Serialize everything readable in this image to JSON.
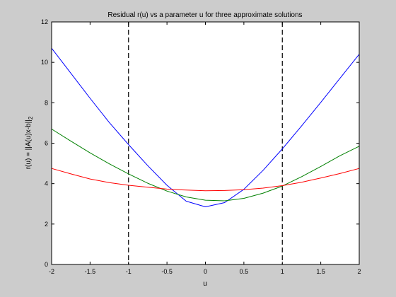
{
  "chart_data": {
    "type": "line",
    "title": "Residual r(u) vs a parameter u for three approximate solutions",
    "xlabel": "u",
    "ylabel_main": "r(u) = ||A(u)x-b||",
    "ylabel_sub": "2",
    "xlim": [
      -2,
      2
    ],
    "ylim": [
      0,
      12
    ],
    "x_ticks": [
      -2,
      -1.5,
      -1,
      -0.5,
      0,
      0.5,
      1,
      1.5,
      2
    ],
    "x_tick_labels": [
      "-2",
      "-1.5",
      "-1",
      "-0.5",
      "0",
      "0.5",
      "1",
      "1.5",
      "2"
    ],
    "y_ticks": [
      0,
      2,
      4,
      6,
      8,
      10,
      12
    ],
    "y_tick_labels": [
      "0",
      "2",
      "4",
      "6",
      "8",
      "10",
      "12"
    ],
    "grid": false,
    "vertical_lines": [
      -1,
      1
    ],
    "x": [
      -2,
      -1.75,
      -1.5,
      -1.25,
      -1,
      -0.75,
      -0.5,
      -0.25,
      0,
      0.25,
      0.5,
      0.75,
      1,
      1.25,
      1.5,
      1.75,
      2
    ],
    "series": [
      {
        "color": "#0000ff",
        "values": [
          10.7,
          9.46,
          8.22,
          7.02,
          5.93,
          4.89,
          3.92,
          3.13,
          2.85,
          3.06,
          3.72,
          4.66,
          5.72,
          6.85,
          8.02,
          9.21,
          10.4
        ]
      },
      {
        "color": "#008000",
        "values": [
          6.7,
          6.1,
          5.52,
          4.98,
          4.48,
          4.02,
          3.63,
          3.34,
          3.18,
          3.15,
          3.27,
          3.53,
          3.88,
          4.34,
          4.85,
          5.38,
          5.85
        ]
      },
      {
        "color": "#ff0000",
        "values": [
          4.75,
          4.48,
          4.23,
          4.05,
          3.92,
          3.82,
          3.73,
          3.68,
          3.65,
          3.66,
          3.7,
          3.78,
          3.9,
          4.07,
          4.28,
          4.5,
          4.75
        ]
      }
    ]
  }
}
